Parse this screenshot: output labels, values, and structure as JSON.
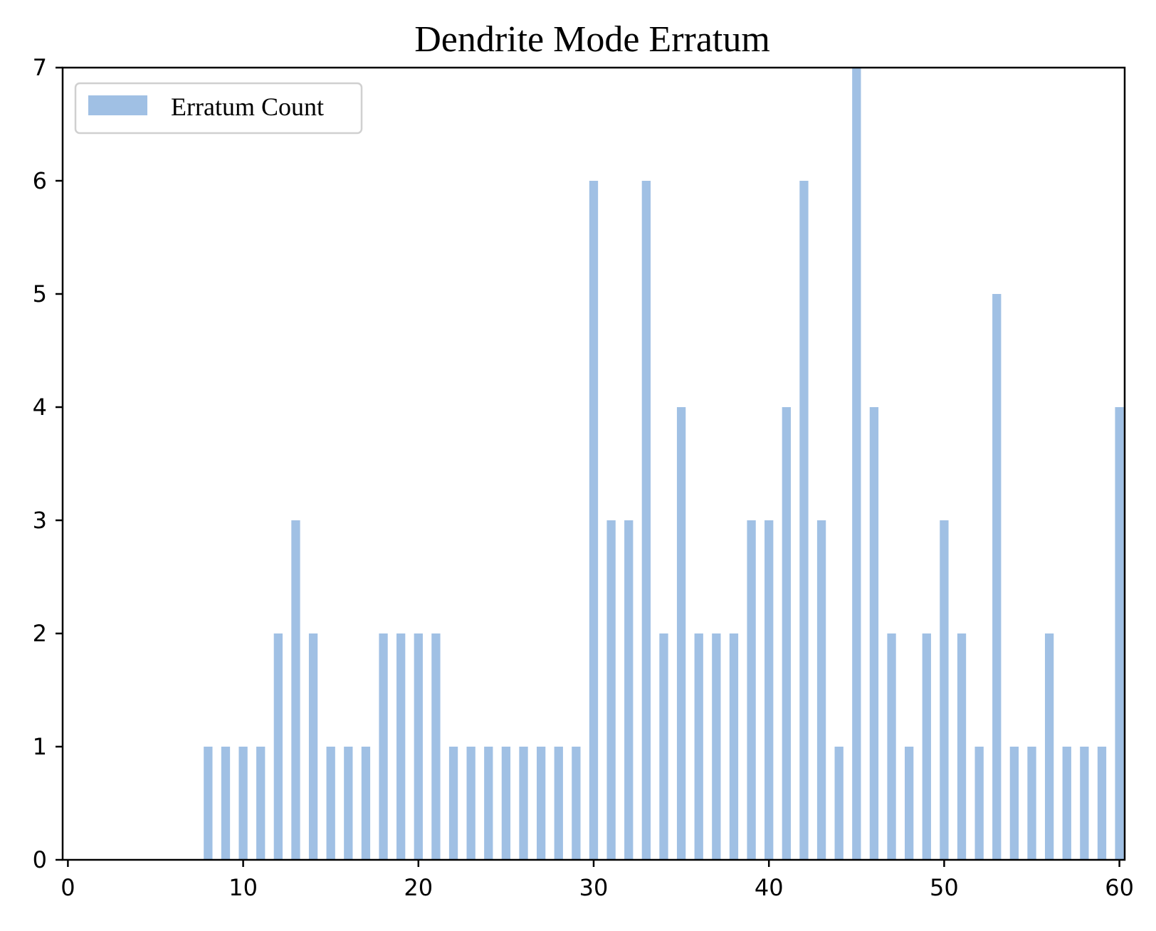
{
  "chart_data": {
    "type": "bar",
    "title": "Dendrite Mode Erratum",
    "xlabel": "",
    "ylabel": "",
    "xlim": [
      -0.3,
      60.3
    ],
    "ylim": [
      0,
      7
    ],
    "xticks": [
      0,
      10,
      20,
      30,
      40,
      50,
      60
    ],
    "yticks": [
      0,
      1,
      2,
      3,
      4,
      5,
      6,
      7
    ],
    "grid": false,
    "legend": {
      "position": "top-left"
    },
    "bar_color": "#a0c0e4",
    "x": [
      8,
      9,
      10,
      11,
      12,
      13,
      14,
      15,
      16,
      17,
      18,
      19,
      20,
      21,
      22,
      23,
      24,
      25,
      26,
      27,
      28,
      29,
      30,
      31,
      32,
      33,
      34,
      35,
      36,
      37,
      38,
      39,
      40,
      41,
      42,
      43,
      44,
      45,
      46,
      47,
      48,
      49,
      50,
      51,
      52,
      53,
      54,
      55,
      56,
      57,
      58,
      59,
      60
    ],
    "series": [
      {
        "name": "Erratum Count",
        "values": [
          1,
          1,
          1,
          1,
          2,
          3,
          2,
          1,
          1,
          1,
          2,
          2,
          2,
          2,
          1,
          1,
          1,
          1,
          1,
          1,
          1,
          1,
          6,
          3,
          3,
          6,
          2,
          4,
          2,
          2,
          2,
          3,
          3,
          4,
          6,
          3,
          1,
          7,
          4,
          2,
          1,
          2,
          3,
          2,
          1,
          5,
          1,
          1,
          2,
          1,
          1,
          1,
          4
        ]
      }
    ]
  }
}
